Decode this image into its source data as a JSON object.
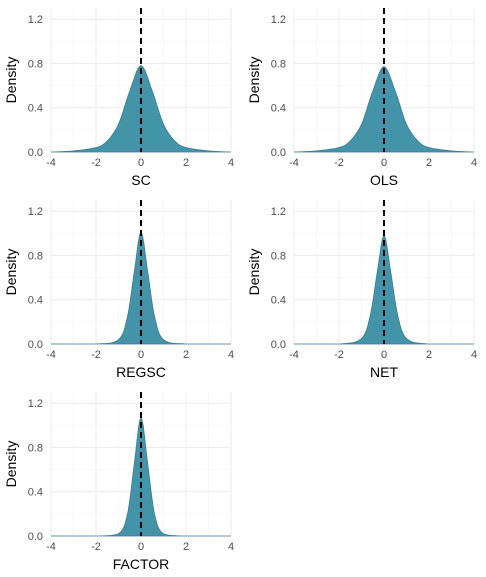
{
  "chart_data": [
    {
      "type": "area",
      "xlabel": "SC",
      "ylabel": "Density",
      "xlim": [
        -4,
        4
      ],
      "ylim": [
        0,
        1.3
      ],
      "xticks": [
        "-4",
        "-2",
        "0",
        "2",
        "4"
      ],
      "yticks": [
        "0.0",
        "0.4",
        "0.8",
        "1.2"
      ],
      "x_points": [
        -4.0,
        -3.0,
        -2.0,
        -1.5,
        -1.0,
        -0.5,
        0.0,
        0.5,
        1.0,
        1.5,
        2.0,
        3.0,
        4.0
      ],
      "density": [
        0.0,
        0.01,
        0.04,
        0.1,
        0.25,
        0.55,
        0.78,
        0.55,
        0.25,
        0.1,
        0.04,
        0.01,
        0.0
      ],
      "reference_line_x": 0,
      "fill_color": "#4393a9",
      "line_style": "dashed",
      "grid": true
    },
    {
      "type": "area",
      "xlabel": "OLS",
      "ylabel": "Density",
      "xlim": [
        -4,
        4
      ],
      "ylim": [
        0,
        1.3
      ],
      "xticks": [
        "-4",
        "-2",
        "0",
        "2",
        "4"
      ],
      "yticks": [
        "0.0",
        "0.4",
        "0.8",
        "1.2"
      ],
      "x_points": [
        -4.0,
        -3.0,
        -2.0,
        -1.5,
        -1.0,
        -0.5,
        0.0,
        0.5,
        1.0,
        1.5,
        2.0,
        3.0,
        4.0
      ],
      "density": [
        0.0,
        0.01,
        0.04,
        0.1,
        0.25,
        0.55,
        0.77,
        0.55,
        0.25,
        0.1,
        0.04,
        0.01,
        0.0
      ],
      "reference_line_x": 0,
      "fill_color": "#4393a9",
      "line_style": "dashed",
      "grid": true
    },
    {
      "type": "area",
      "xlabel": "REGSC",
      "ylabel": "Density",
      "xlim": [
        -4,
        4
      ],
      "ylim": [
        0,
        1.3
      ],
      "xticks": [
        "-4",
        "-2",
        "0",
        "2",
        "4"
      ],
      "yticks": [
        "0.0",
        "0.4",
        "0.8",
        "1.2"
      ],
      "x_points": [
        -4.0,
        -2.0,
        -1.0,
        -0.6,
        -0.3,
        0.0,
        0.3,
        0.6,
        1.0,
        2.0,
        4.0
      ],
      "density": [
        0.0,
        0.0,
        0.04,
        0.25,
        0.65,
        1.01,
        0.65,
        0.25,
        0.04,
        0.0,
        0.0
      ],
      "reference_line_x": 0,
      "fill_color": "#4393a9",
      "line_style": "dashed",
      "grid": true
    },
    {
      "type": "area",
      "xlabel": "NET",
      "ylabel": "Density",
      "xlim": [
        -4,
        4
      ],
      "ylim": [
        0,
        1.3
      ],
      "xticks": [
        "-4",
        "-2",
        "0",
        "2",
        "4"
      ],
      "yticks": [
        "0.0",
        "0.4",
        "0.8",
        "1.2"
      ],
      "x_points": [
        -4.0,
        -2.0,
        -1.0,
        -0.6,
        -0.3,
        0.0,
        0.3,
        0.6,
        1.0,
        2.0,
        4.0
      ],
      "density": [
        0.0,
        0.0,
        0.05,
        0.27,
        0.65,
        0.98,
        0.65,
        0.27,
        0.05,
        0.0,
        0.0
      ],
      "reference_line_x": 0,
      "fill_color": "#4393a9",
      "line_style": "dashed",
      "grid": true
    },
    {
      "type": "area",
      "xlabel": "FACTOR",
      "ylabel": "Density",
      "xlim": [
        -4,
        4
      ],
      "ylim": [
        0,
        1.3
      ],
      "xticks": [
        "-4",
        "-2",
        "0",
        "2",
        "4"
      ],
      "yticks": [
        "0.0",
        "0.4",
        "0.8",
        "1.2"
      ],
      "x_points": [
        -4.0,
        -2.0,
        -1.0,
        -0.6,
        -0.3,
        0.0,
        0.3,
        0.6,
        1.0,
        2.0,
        4.0
      ],
      "density": [
        0.0,
        0.0,
        0.02,
        0.2,
        0.65,
        1.07,
        0.65,
        0.2,
        0.02,
        0.0,
        0.0
      ],
      "reference_line_x": 0,
      "fill_color": "#4393a9",
      "line_style": "dashed",
      "grid": true
    }
  ]
}
